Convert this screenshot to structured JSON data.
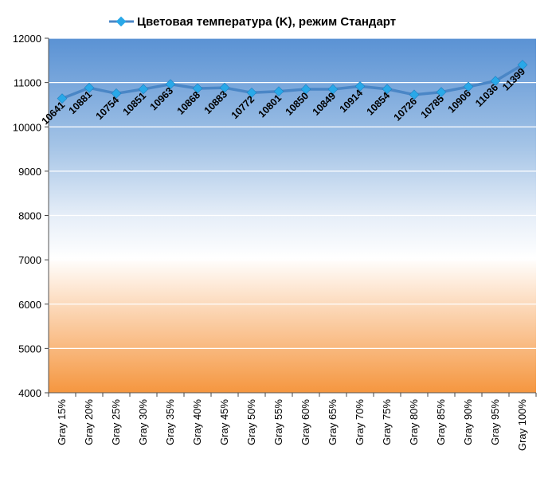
{
  "chart_data": {
    "type": "line",
    "title": "",
    "legend_position": "top",
    "grid": true,
    "ylim": [
      4000,
      12000
    ],
    "yticks": [
      "4000",
      "5000",
      "6000",
      "7000",
      "8000",
      "9000",
      "10000",
      "11000",
      "12000"
    ],
    "categories": [
      "Gray 15%",
      "Gray 20%",
      "Gray 25%",
      "Gray 30%",
      "Gray 35%",
      "Gray 40%",
      "Gray 45%",
      "Gray 50%",
      "Gray 55%",
      "Gray 60%",
      "Gray 65%",
      "Gray 70%",
      "Gray 75%",
      "Gray 80%",
      "Gray 85%",
      "Gray 90%",
      "Gray 95%",
      "Gray 100%"
    ],
    "series": [
      {
        "name": "Цветовая температура (K), режим Стандарт",
        "color": "#4a86c6",
        "marker_color": "#29a8e8",
        "values": [
          10641,
          10881,
          10754,
          10851,
          10963,
          10868,
          10883,
          10772,
          10801,
          10850,
          10849,
          10914,
          10854,
          10726,
          10785,
          10906,
          11036,
          11399
        ],
        "labels": [
          "10641",
          "10881",
          "10754",
          "10851",
          "10963",
          "10868",
          "10883",
          "10772",
          "10801",
          "10850",
          "10849",
          "10914",
          "10854",
          "10726",
          "10785",
          "10906",
          "11036",
          "11399"
        ]
      }
    ],
    "background_gradient": [
      "#5b93d5",
      "#ffffff",
      "#f59a4a"
    ]
  }
}
